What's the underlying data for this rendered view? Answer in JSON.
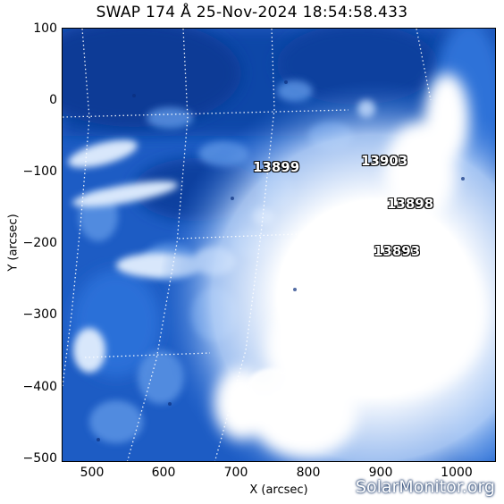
{
  "title": "SWAP 174 Å 25-Nov-2024 18:54:58.433",
  "axes": {
    "x_label": "X (arcsec)",
    "y_label": "Y (arcsec)",
    "x_ticks": [
      "500",
      "600",
      "700",
      "800",
      "900",
      "1000"
    ],
    "y_ticks": [
      "100",
      "0",
      "−100",
      "−200",
      "−300",
      "−400",
      "−500"
    ]
  },
  "regions": [
    {
      "label": "13899"
    },
    {
      "label": "13903"
    },
    {
      "label": "13898"
    },
    {
      "label": "13893"
    }
  ],
  "watermark": "SolarMonitor.org",
  "colors": {
    "dark_blue": "#0b3f9b",
    "mid_blue": "#2a6ed6",
    "light_blue": "#8fb8f2",
    "bright": "#ffffff"
  }
}
